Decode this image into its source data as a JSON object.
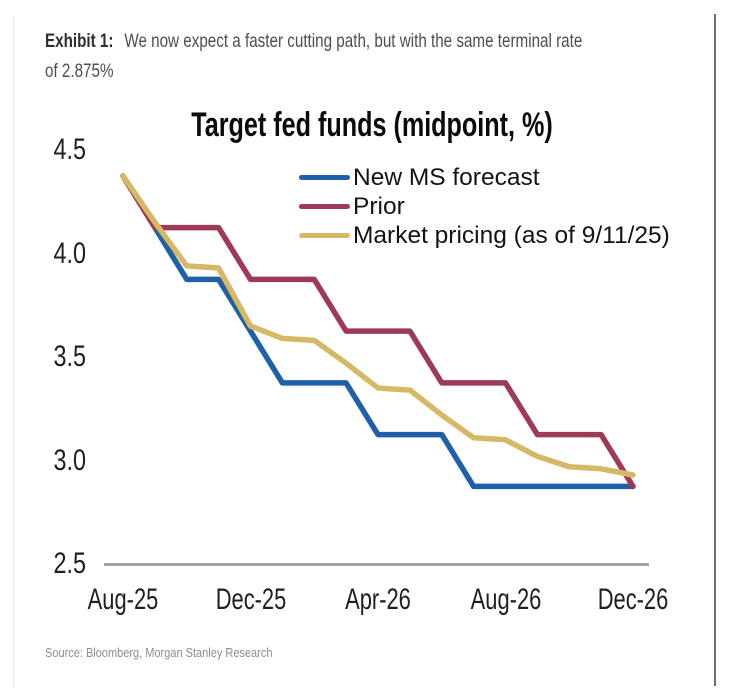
{
  "header": {
    "exhibit_label": "Exhibit 1:",
    "title_line1": "We now expect a faster cutting path, but with the same terminal rate",
    "title_line2": "of 2.875%"
  },
  "footer": {
    "source": "Source: Bloomberg, Morgan Stanley Research"
  },
  "colors": {
    "new_ms_forecast": "#1f61a9",
    "prior": "#9d3a55",
    "market_pricing": "#d6b967",
    "axis_line": "#a1a1a1",
    "tick_text": "#1f1f1f"
  },
  "chart_data": {
    "type": "line",
    "title": "Target fed funds (midpoint, %)",
    "x": [
      "Aug-25",
      "Sep-25",
      "Oct-25",
      "Nov-25",
      "Dec-25",
      "Jan-26",
      "Feb-26",
      "Mar-26",
      "Apr-26",
      "May-26",
      "Jun-26",
      "Jul-26",
      "Aug-26",
      "Sep-26",
      "Oct-26",
      "Nov-26",
      "Dec-26"
    ],
    "x_tick_labels": [
      "Aug-25",
      "Dec-25",
      "Apr-26",
      "Aug-26",
      "Dec-26"
    ],
    "x_tick_month_index": [
      0,
      4,
      8,
      12,
      16
    ],
    "y_tick_labels": [
      "4.5",
      "4.0",
      "3.5",
      "3.0",
      "2.5"
    ],
    "y_tick_values": [
      4.5,
      4.0,
      3.5,
      3.0,
      2.5
    ],
    "ylim": [
      2.5,
      4.5
    ],
    "grid": false,
    "legend_position": "top-center-inside",
    "series": [
      {
        "name": "New MS forecast",
        "color": "#1f61a9",
        "values": [
          4.375,
          4.125,
          3.875,
          3.875,
          3.625,
          3.375,
          3.375,
          3.375,
          3.125,
          3.125,
          3.125,
          2.875,
          2.875,
          2.875,
          2.875,
          2.875,
          2.875
        ]
      },
      {
        "name": "Prior",
        "color": "#9d3a55",
        "values": [
          4.375,
          4.125,
          4.125,
          4.125,
          3.875,
          3.875,
          3.875,
          3.625,
          3.625,
          3.625,
          3.375,
          3.375,
          3.375,
          3.125,
          3.125,
          3.125,
          2.875
        ]
      },
      {
        "name": "Market pricing (as of 9/11/25)",
        "color": "#d6b967",
        "values": [
          4.375,
          4.15,
          3.94,
          3.93,
          3.65,
          3.59,
          3.58,
          3.47,
          3.35,
          3.34,
          3.22,
          3.11,
          3.1,
          3.02,
          2.97,
          2.96,
          2.93
        ]
      }
    ]
  }
}
